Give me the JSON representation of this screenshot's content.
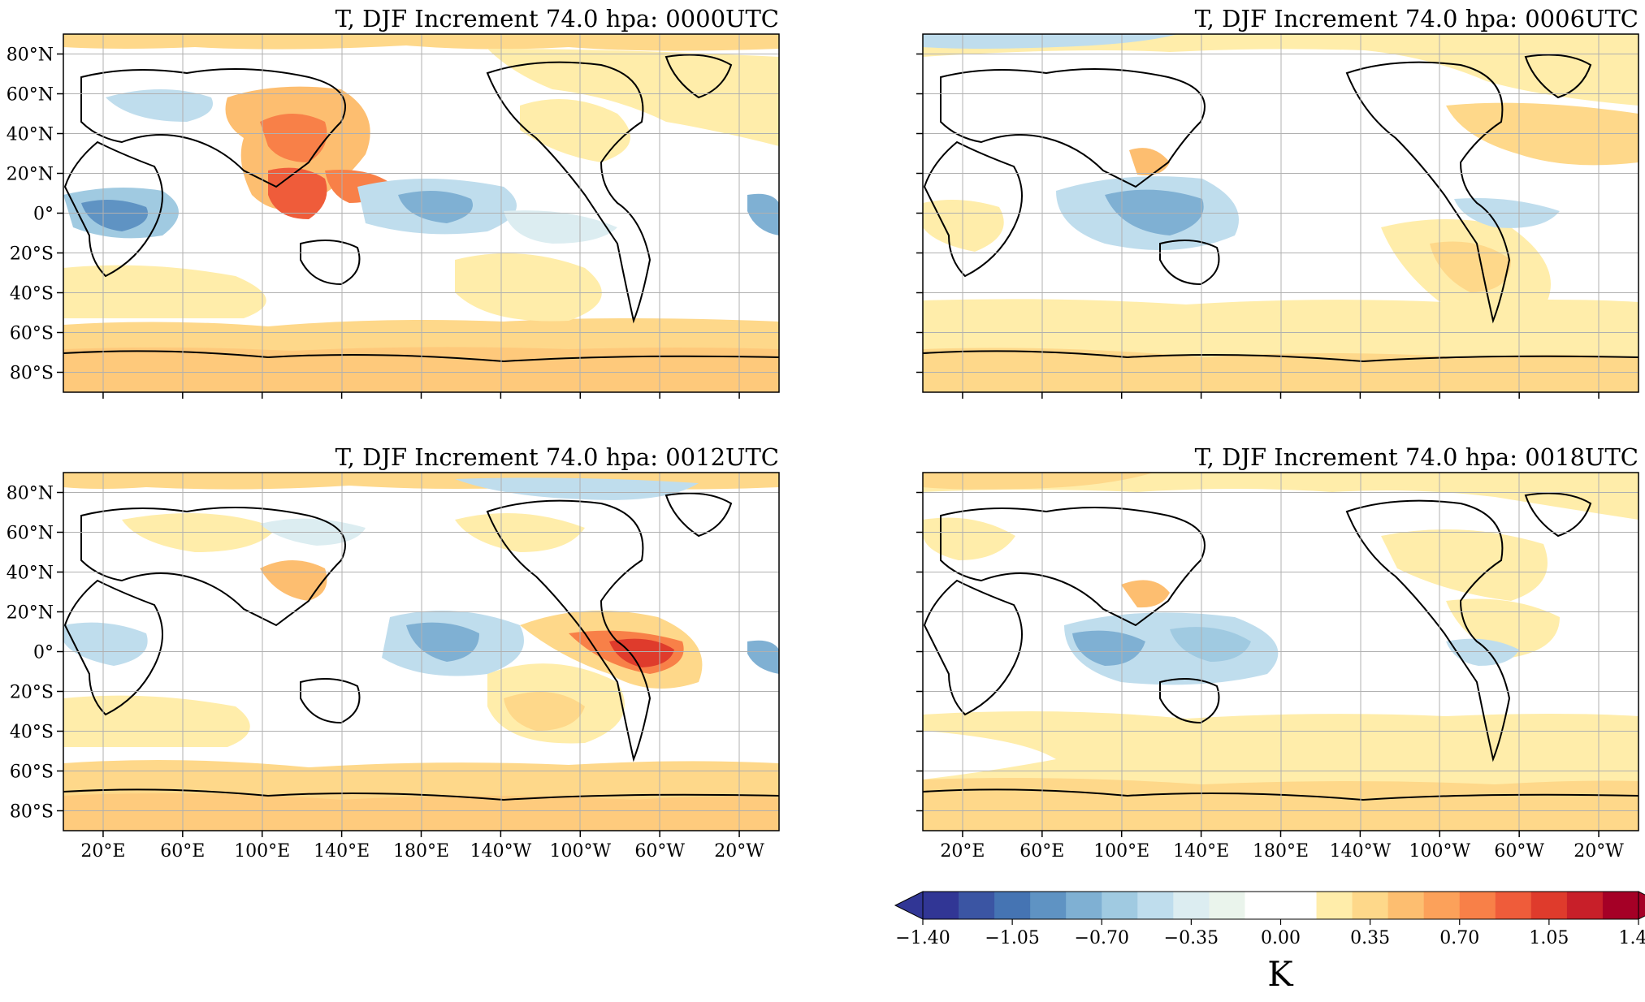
{
  "panels": [
    {
      "title": "T, DJF Increment 74.0 hpa: 0000UTC",
      "show_lat_labels": true,
      "show_lon_labels": false
    },
    {
      "title": "T, DJF Increment 74.0 hpa: 0006UTC",
      "show_lat_labels": false,
      "show_lon_labels": false
    },
    {
      "title": "T, DJF Increment 74.0 hpa: 0012UTC",
      "show_lat_labels": true,
      "show_lon_labels": true
    },
    {
      "title": "T, DJF Increment 74.0 hpa: 0018UTC",
      "show_lat_labels": false,
      "show_lon_labels": true
    }
  ],
  "lat_labels": [
    "80°N",
    "60°N",
    "40°N",
    "20°N",
    "0°",
    "20°S",
    "40°S",
    "60°S",
    "80°S"
  ],
  "lat_values": [
    80,
    60,
    40,
    20,
    0,
    -20,
    -40,
    -60,
    -80
  ],
  "lon_labels": [
    "20°E",
    "60°E",
    "100°E",
    "140°E",
    "180°E",
    "140°W",
    "100°W",
    "60°W",
    "20°W"
  ],
  "lon_values": [
    20,
    60,
    100,
    140,
    180,
    220,
    260,
    300,
    340
  ],
  "colorbar": {
    "tick_labels": [
      "−1.40",
      "−1.05",
      "−0.70",
      "−0.35",
      "0.00",
      "0.35",
      "0.70",
      "1.05",
      "1.40"
    ],
    "tick_values": [
      -1.4,
      -1.05,
      -0.7,
      -0.35,
      0,
      0.35,
      0.7,
      1.05,
      1.4
    ],
    "unit": "K",
    "colors": [
      "#313695",
      "#3b55a3",
      "#4574b3",
      "#5f93c3",
      "#7fb0d3",
      "#a0cae1",
      "#bfdded",
      "#dcedf1",
      "#eaf4ec",
      "#ffffff",
      "#ffffff",
      "#ffedaa",
      "#fed88a",
      "#fdbe70",
      "#fca15a",
      "#f88048",
      "#ef5c3a",
      "#df3b2c",
      "#c81f29",
      "#a50026"
    ],
    "extend": "both"
  },
  "colors": {
    "land_outline": "#000000",
    "grid": "#b0b0b0"
  }
}
